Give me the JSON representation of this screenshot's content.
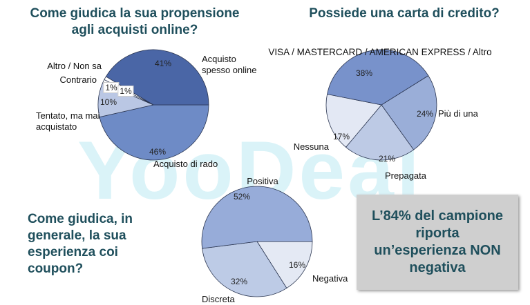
{
  "watermark": "YooDeal",
  "callout": "L’84% del campione riporta un’esperienza NON negativa",
  "chart_data": [
    {
      "type": "pie",
      "title": "Come giudica la sua propensione agli acquisti online?",
      "categories": [
        "Acquisto di rado",
        "Tentato, ma mai acquistato",
        "Contrario",
        "Altro / Non sa",
        "Acquisto spesso online"
      ],
      "values": [
        46,
        10,
        1,
        1,
        41
      ],
      "value_labels": [
        "46%",
        "10%",
        "1%",
        "1%",
        "41%"
      ],
      "colors": [
        "#6e8bc6",
        "#bac7e4",
        "#ffffff",
        "#ffffff",
        "#4a66a6"
      ]
    },
    {
      "type": "pie",
      "title": "Possiede una carta di credito?",
      "subtitle": "VISA / MASTERCARD / AMERICAN EXPRESS / Altro",
      "categories": [
        "Più di una",
        "Prepagata",
        "Nessuna",
        null
      ],
      "values": [
        24,
        21,
        17,
        38
      ],
      "value_labels": [
        "24%",
        "21%",
        "17%",
        "38%"
      ],
      "colors": [
        "#9aaed8",
        "#bdcae5",
        "#e3e8f4",
        "#7892cb"
      ]
    },
    {
      "type": "pie",
      "title": "Come giudica, in generale, la sua esperienza coi coupon?",
      "categories": [
        "Negativa",
        "Discreta",
        "Positiva"
      ],
      "values": [
        16,
        32,
        52
      ],
      "value_labels": [
        "16%",
        "32%",
        "52%"
      ],
      "colors": [
        "#e4e9f4",
        "#bdcbe6",
        "#97acd9"
      ]
    }
  ]
}
